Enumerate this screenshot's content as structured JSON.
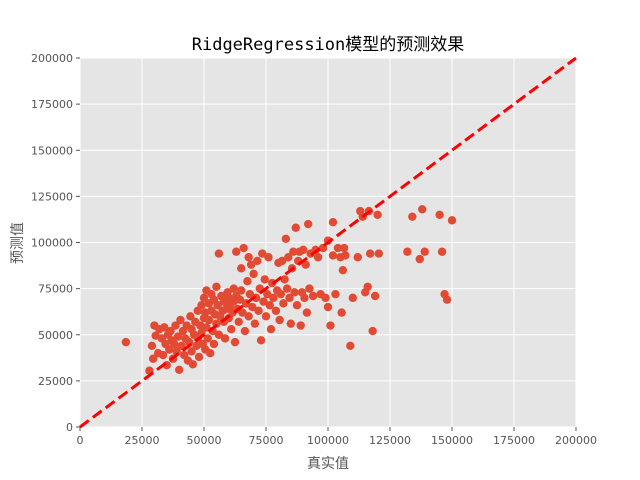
{
  "chart_data": {
    "type": "scatter",
    "title": "RidgeRegression模型的预测效果",
    "xlabel": "真实值",
    "ylabel": "预测值",
    "xlim": [
      0,
      200000
    ],
    "ylim": [
      0,
      200000
    ],
    "xticks": [
      "0",
      "25000",
      "50000",
      "75000",
      "100000",
      "125000",
      "150000",
      "175000",
      "200000"
    ],
    "yticks": [
      "0",
      "25000",
      "50000",
      "75000",
      "100000",
      "125000",
      "150000",
      "175000",
      "200000"
    ],
    "grid": true,
    "style": "ggplot",
    "colors": {
      "points": "#E24A33",
      "reference_line": "#FF0000",
      "plot_bg": "#E5E5E5",
      "grid": "#FFFFFF"
    },
    "reference_line": {
      "style": "dashed",
      "from": [
        0,
        0
      ],
      "to": [
        200000,
        200000
      ]
    },
    "points": [
      [
        18500,
        46000
      ],
      [
        28000,
        30500
      ],
      [
        29000,
        44000
      ],
      [
        29500,
        37000
      ],
      [
        30000,
        55000
      ],
      [
        30500,
        49500
      ],
      [
        31500,
        40000
      ],
      [
        32000,
        53000
      ],
      [
        33000,
        48000
      ],
      [
        33500,
        39000
      ],
      [
        34000,
        54000
      ],
      [
        34500,
        45000
      ],
      [
        35000,
        33500
      ],
      [
        35500,
        50000
      ],
      [
        36000,
        42000
      ],
      [
        36500,
        52000
      ],
      [
        37000,
        47000
      ],
      [
        37500,
        37000
      ],
      [
        38000,
        45000
      ],
      [
        38500,
        55000
      ],
      [
        39000,
        41000
      ],
      [
        39500,
        49000
      ],
      [
        40000,
        31000
      ],
      [
        40500,
        58000
      ],
      [
        41000,
        44000
      ],
      [
        41500,
        52000
      ],
      [
        42000,
        39000
      ],
      [
        42500,
        48000
      ],
      [
        43000,
        55000
      ],
      [
        43500,
        36000
      ],
      [
        44000,
        46000
      ],
      [
        44500,
        60000
      ],
      [
        45000,
        41000
      ],
      [
        45000,
        53000
      ],
      [
        45500,
        34000
      ],
      [
        46000,
        50000
      ],
      [
        46500,
        57000
      ],
      [
        47000,
        44000
      ],
      [
        47500,
        63000
      ],
      [
        47500,
        48000
      ],
      [
        48000,
        38000
      ],
      [
        48500,
        55000
      ],
      [
        49000,
        66000
      ],
      [
        49000,
        51000
      ],
      [
        49500,
        45000
      ],
      [
        50000,
        59000
      ],
      [
        50000,
        70000
      ],
      [
        50500,
        62000
      ],
      [
        50500,
        42000
      ],
      [
        51000,
        54000
      ],
      [
        51000,
        74000
      ],
      [
        51500,
        48000
      ],
      [
        52000,
        67000
      ],
      [
        52000,
        58000
      ],
      [
        52500,
        40000
      ],
      [
        53000,
        63000
      ],
      [
        53000,
        72000
      ],
      [
        53500,
        52000
      ],
      [
        54000,
        45000
      ],
      [
        54000,
        69000
      ],
      [
        54500,
        61000
      ],
      [
        55000,
        56000
      ],
      [
        55000,
        76000
      ],
      [
        55500,
        66000
      ],
      [
        56000,
        50000
      ],
      [
        56000,
        94000
      ],
      [
        56500,
        60000
      ],
      [
        57000,
        71000
      ],
      [
        57500,
        63000
      ],
      [
        58000,
        57000
      ],
      [
        58000,
        68000
      ],
      [
        58500,
        48000
      ],
      [
        59000,
        64000
      ],
      [
        59500,
        73000
      ],
      [
        60000,
        59000
      ],
      [
        60000,
        70000
      ],
      [
        60500,
        66000
      ],
      [
        61000,
        53000
      ],
      [
        61500,
        62000
      ],
      [
        62000,
        75000
      ],
      [
        62000,
        68000
      ],
      [
        62500,
        46000
      ],
      [
        63000,
        71000
      ],
      [
        63000,
        95000
      ],
      [
        63500,
        64000
      ],
      [
        64000,
        57000
      ],
      [
        64500,
        69000
      ],
      [
        65000,
        74000
      ],
      [
        65000,
        86000
      ],
      [
        65500,
        62000
      ],
      [
        66000,
        97000
      ],
      [
        66500,
        52000
      ],
      [
        67000,
        67000
      ],
      [
        67500,
        79000
      ],
      [
        68000,
        60000
      ],
      [
        68000,
        92000
      ],
      [
        68500,
        72000
      ],
      [
        69000,
        88000
      ],
      [
        69500,
        65000
      ],
      [
        70000,
        83000
      ],
      [
        70500,
        56000
      ],
      [
        71000,
        70000
      ],
      [
        71500,
        90000
      ],
      [
        72000,
        63000
      ],
      [
        72500,
        75000
      ],
      [
        73000,
        47000
      ],
      [
        73500,
        94000
      ],
      [
        74000,
        68000
      ],
      [
        74500,
        80000
      ],
      [
        75000,
        60000
      ],
      [
        75500,
        72000
      ],
      [
        76000,
        92000
      ],
      [
        76500,
        66000
      ],
      [
        77000,
        53000
      ],
      [
        77500,
        78000
      ],
      [
        78000,
        70000
      ],
      [
        79000,
        63000
      ],
      [
        79500,
        74000
      ],
      [
        80000,
        89000
      ],
      [
        80500,
        58000
      ],
      [
        81000,
        72000
      ],
      [
        81500,
        90000
      ],
      [
        82000,
        67000
      ],
      [
        82500,
        80000
      ],
      [
        83000,
        102000
      ],
      [
        83500,
        75000
      ],
      [
        84000,
        92000
      ],
      [
        84500,
        70000
      ],
      [
        85000,
        56000
      ],
      [
        85500,
        86000
      ],
      [
        86000,
        95000
      ],
      [
        86500,
        73000
      ],
      [
        87000,
        108000
      ],
      [
        87500,
        66000
      ],
      [
        88000,
        90000
      ],
      [
        88500,
        95000
      ],
      [
        89000,
        55000
      ],
      [
        89500,
        73000
      ],
      [
        90000,
        96000
      ],
      [
        90500,
        70000
      ],
      [
        91000,
        88000
      ],
      [
        91500,
        62000
      ],
      [
        92000,
        110000
      ],
      [
        92500,
        75000
      ],
      [
        93000,
        94000
      ],
      [
        94000,
        71000
      ],
      [
        95000,
        96000
      ],
      [
        96000,
        92000
      ],
      [
        97000,
        72000
      ],
      [
        98000,
        97000
      ],
      [
        99000,
        70000
      ],
      [
        100000,
        101000
      ],
      [
        100000,
        65000
      ],
      [
        101000,
        55000
      ],
      [
        102000,
        93000
      ],
      [
        102000,
        111000
      ],
      [
        103000,
        72000
      ],
      [
        104000,
        97000
      ],
      [
        105000,
        92000
      ],
      [
        105500,
        62000
      ],
      [
        106000,
        85000
      ],
      [
        106500,
        97000
      ],
      [
        107000,
        93000
      ],
      [
        109000,
        44000
      ],
      [
        110000,
        70000
      ],
      [
        112000,
        92000
      ],
      [
        113000,
        117000
      ],
      [
        114000,
        114000
      ],
      [
        115000,
        73000
      ],
      [
        116000,
        76000
      ],
      [
        116500,
        117000
      ],
      [
        117000,
        94000
      ],
      [
        118000,
        52000
      ],
      [
        119000,
        71000
      ],
      [
        120000,
        115000
      ],
      [
        120500,
        94000
      ],
      [
        132000,
        95000
      ],
      [
        134000,
        114000
      ],
      [
        137000,
        91000
      ],
      [
        138000,
        118000
      ],
      [
        139000,
        95000
      ],
      [
        145000,
        115000
      ],
      [
        146000,
        95000
      ],
      [
        147000,
        72000
      ],
      [
        148000,
        69000
      ],
      [
        150000,
        112000
      ]
    ]
  }
}
